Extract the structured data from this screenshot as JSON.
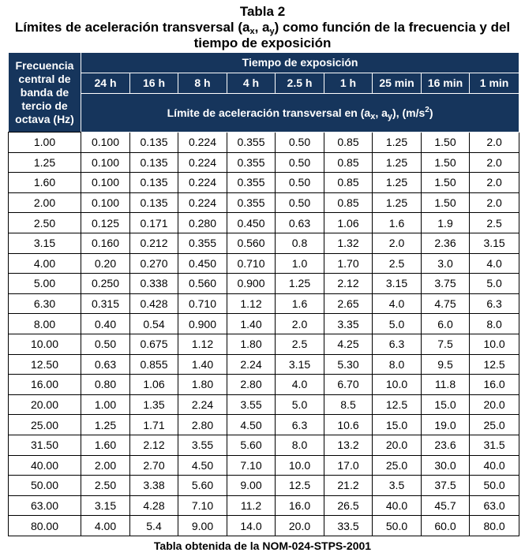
{
  "title": {
    "line1": "Tabla 2",
    "line2_pre": "Límites de aceleración transversal (a",
    "line2_sub1": "x",
    "line2_mid": ", a",
    "line2_sub2": "y",
    "line2_post": ") como función de la frecuencia y del",
    "line3": "tiempo de exposición"
  },
  "table": {
    "freq_header": "Frecuencia central de banda de tercio de octava (Hz)",
    "time_header": "Tiempo de exposición",
    "times": [
      "24 h",
      "16 h",
      "8 h",
      "4 h",
      "2.5 h",
      "1 h",
      "25 min",
      "16 min",
      "1 min"
    ],
    "limit_pre": "Límite de aceleración transversal en (a",
    "limit_sub1": "x",
    "limit_mid": ", a",
    "limit_sub2": "y",
    "limit_post": "), (m/s",
    "limit_sup": "2",
    "limit_end": ")",
    "rows": [
      [
        "1.00",
        "0.100",
        "0.135",
        "0.224",
        "0.355",
        "0.50",
        "0.85",
        "1.25",
        "1.50",
        "2.0"
      ],
      [
        "1.25",
        "0.100",
        "0.135",
        "0.224",
        "0.355",
        "0.50",
        "0.85",
        "1.25",
        "1.50",
        "2.0"
      ],
      [
        "1.60",
        "0.100",
        "0.135",
        "0.224",
        "0.355",
        "0.50",
        "0.85",
        "1.25",
        "1.50",
        "2.0"
      ],
      [
        "2.00",
        "0.100",
        "0.135",
        "0.224",
        "0.355",
        "0.50",
        "0.85",
        "1.25",
        "1.50",
        "2.0"
      ],
      [
        "2.50",
        "0.125",
        "0.171",
        "0.280",
        "0.450",
        "0.63",
        "1.06",
        "1.6",
        "1.9",
        "2.5"
      ],
      [
        "3.15",
        "0.160",
        "0.212",
        "0.355",
        "0.560",
        "0.8",
        "1.32",
        "2.0",
        "2.36",
        "3.15"
      ],
      [
        "4.00",
        "0.20",
        "0.270",
        "0.450",
        "0.710",
        "1.0",
        "1.70",
        "2.5",
        "3.0",
        "4.0"
      ],
      [
        "5.00",
        "0.250",
        "0.338",
        "0.560",
        "0.900",
        "1.25",
        "2.12",
        "3.15",
        "3.75",
        "5.0"
      ],
      [
        "6.30",
        "0.315",
        "0.428",
        "0.710",
        "1.12",
        "1.6",
        "2.65",
        "4.0",
        "4.75",
        "6.3"
      ],
      [
        "8.00",
        "0.40",
        "0.54",
        "0.900",
        "1.40",
        "2.0",
        "3.35",
        "5.0",
        "6.0",
        "8.0"
      ],
      [
        "10.00",
        "0.50",
        "0.675",
        "1.12",
        "1.80",
        "2.5",
        "4.25",
        "6.3",
        "7.5",
        "10.0"
      ],
      [
        "12.50",
        "0.63",
        "0.855",
        "1.40",
        "2.24",
        "3.15",
        "5.30",
        "8.0",
        "9.5",
        "12.5"
      ],
      [
        "16.00",
        "0.80",
        "1.06",
        "1.80",
        "2.80",
        "4.0",
        "6.70",
        "10.0",
        "11.8",
        "16.0"
      ],
      [
        "20.00",
        "1.00",
        "1.35",
        "2.24",
        "3.55",
        "5.0",
        "8.5",
        "12.5",
        "15.0",
        "20.0"
      ],
      [
        "25.00",
        "1.25",
        "1.71",
        "2.80",
        "4.50",
        "6.3",
        "10.6",
        "15.0",
        "19.0",
        "25.0"
      ],
      [
        "31.50",
        "1.60",
        "2.12",
        "3.55",
        "5.60",
        "8.0",
        "13.2",
        "20.0",
        "23.6",
        "31.5"
      ],
      [
        "40.00",
        "2.00",
        "2.70",
        "4.50",
        "7.10",
        "10.0",
        "17.0",
        "25.0",
        "30.0",
        "40.0"
      ],
      [
        "50.00",
        "2.50",
        "3.38",
        "5.60",
        "9.00",
        "12.5",
        "21.2",
        "3.5",
        "37.5",
        "50.0"
      ],
      [
        "63.00",
        "3.15",
        "4.28",
        "7.10",
        "11.2",
        "16.0",
        "26.5",
        "40.0",
        "45.7",
        "63.0"
      ],
      [
        "80.00",
        "4.00",
        "5.4",
        "9.00",
        "14.0",
        "20.0",
        "33.5",
        "50.0",
        "60.0",
        "80.0"
      ]
    ]
  },
  "footer": "Tabla obtenida de la NOM-024-STPS-2001",
  "colors": {
    "header_bg": "#16355c",
    "header_text": "#ffffff"
  }
}
